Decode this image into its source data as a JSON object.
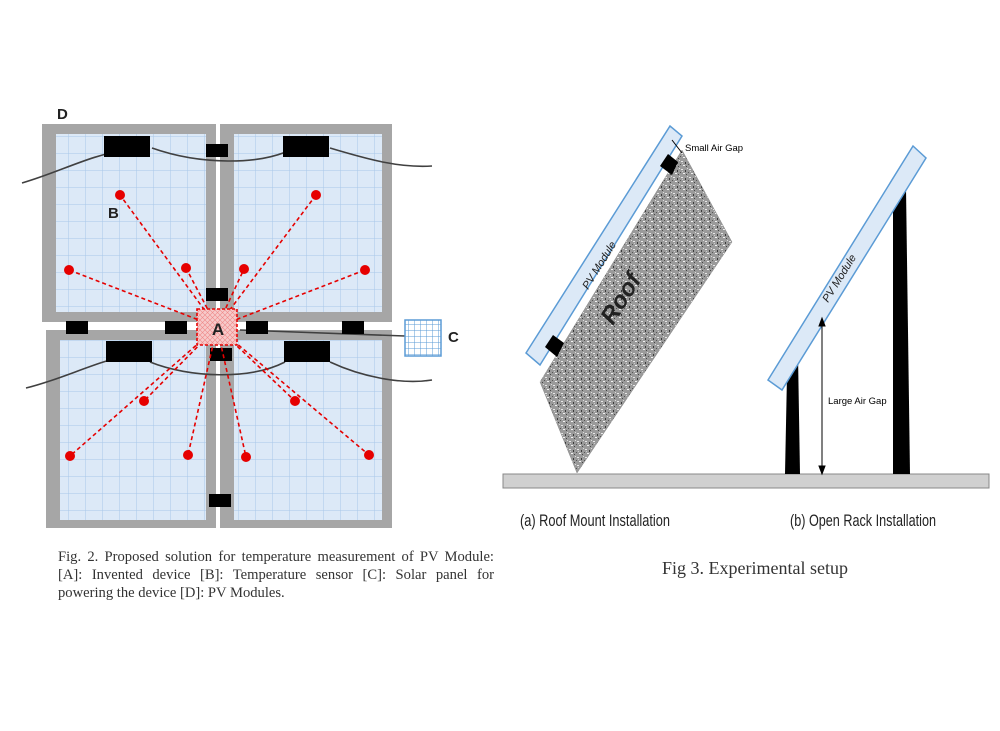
{
  "fig2": {
    "label_a": "A",
    "label_b": "B",
    "label_c": "C",
    "label_d": "D",
    "caption": "Fig. 2. Proposed solution for temperature measurement of PV Module: [A]: Invented device [B]: Temperature sensor [C]: Solar panel for powering the device [D]: PV Modules."
  },
  "fig3": {
    "module_label": "PV Module",
    "roof_label": "Roof",
    "small_gap_label": "Small Air Gap",
    "large_gap_label": "Large Air Gap",
    "subcaption_a": "(a) Roof Mount Installation",
    "subcaption_b": "(b) Open Rack Installation",
    "caption": "Fig 3. Experimental setup"
  },
  "colors": {
    "panel_frame": "#a6a6a6",
    "panel_cell": "#dce9f7",
    "panel_grid": "#9fc1e4",
    "sensor_red": "#e60000",
    "device_fill": "#f6c0c0"
  }
}
